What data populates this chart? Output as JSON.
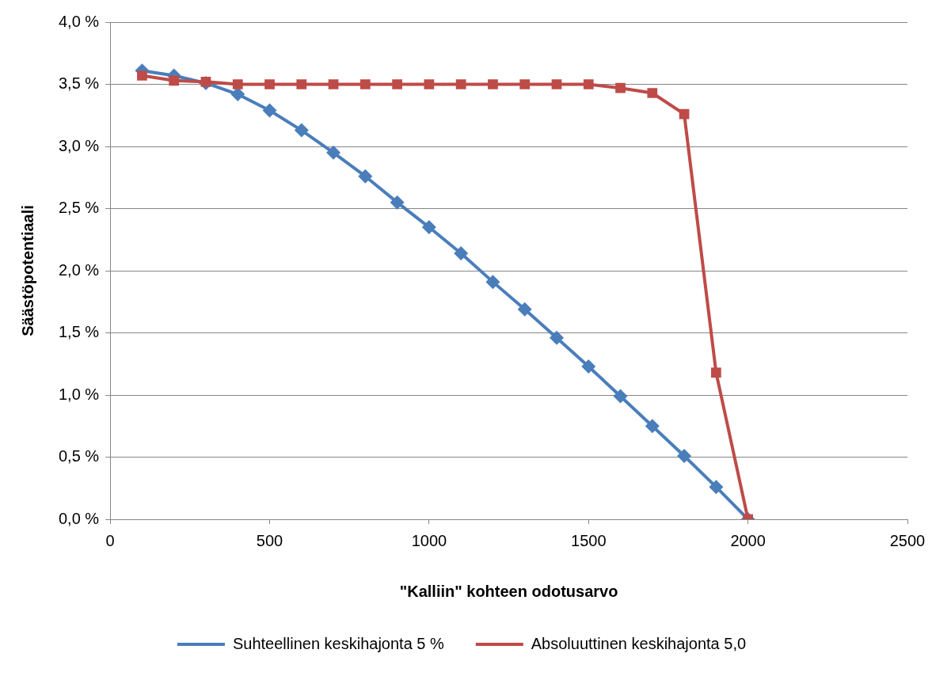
{
  "chart_data": {
    "type": "line",
    "xlabel": "\"Kalliin\" kohteen odotusarvo",
    "ylabel": "Säästöpotentiaali",
    "x": [
      100,
      200,
      300,
      400,
      500,
      600,
      700,
      800,
      900,
      1000,
      1100,
      1200,
      1300,
      1400,
      1500,
      1600,
      1700,
      1800,
      1900,
      2000
    ],
    "series": [
      {
        "name": "Suhteellinen keskihajonta 5 %",
        "color": "#4a7ebb",
        "marker": "diamond",
        "values": [
          3.61,
          3.57,
          3.51,
          3.42,
          3.29,
          3.13,
          2.95,
          2.76,
          2.55,
          2.35,
          2.14,
          1.91,
          1.69,
          1.46,
          1.23,
          0.99,
          0.75,
          0.51,
          0.26,
          0
        ]
      },
      {
        "name": "Absoluuttinen keskihajonta 5,0",
        "color": "#be4b48",
        "marker": "square",
        "values": [
          3.57,
          3.53,
          3.52,
          3.5,
          3.5,
          3.5,
          3.5,
          3.5,
          3.5,
          3.5,
          3.5,
          3.5,
          3.5,
          3.5,
          3.5,
          3.47,
          3.43,
          3.26,
          1.18,
          0
        ]
      }
    ],
    "xlim": [
      0,
      2500
    ],
    "xticks": [
      0,
      500,
      1000,
      1500,
      2000,
      2500
    ],
    "ylim": [
      0,
      4
    ],
    "yticks": [
      {
        "value": 0,
        "label": "0,0 %"
      },
      {
        "value": 0.5,
        "label": "0,5 %"
      },
      {
        "value": 1,
        "label": "1,0 %"
      },
      {
        "value": 1.5,
        "label": "1,5 %"
      },
      {
        "value": 2,
        "label": "2,0 %"
      },
      {
        "value": 2.5,
        "label": "2,5 %"
      },
      {
        "value": 3,
        "label": "3,0 %"
      },
      {
        "value": 3.5,
        "label": "3,5 %"
      },
      {
        "value": 4,
        "label": "4,0 %"
      }
    ],
    "grid": "y",
    "legend": "bottom",
    "line_style": "solid"
  }
}
